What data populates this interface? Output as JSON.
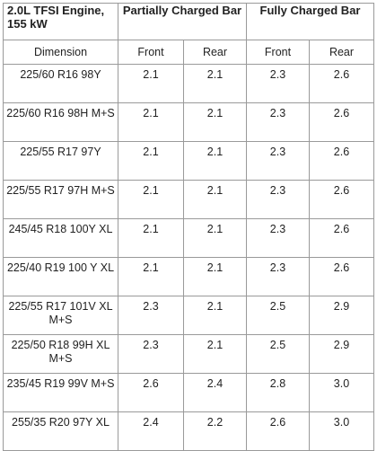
{
  "header": {
    "engine": "2.0L TFSI Engine, 155 kW",
    "partially": "Partially Charged Bar",
    "fully": "Fully Charged Bar"
  },
  "subheader": {
    "dimension": "Dimension",
    "front1": "Front",
    "rear1": "Rear",
    "front2": "Front",
    "rear2": "Rear"
  },
  "rows": [
    {
      "dimension": "225/60 R16 98Y",
      "pf": "2.1",
      "pr": "2.1",
      "ff": "2.3",
      "fr": "2.6"
    },
    {
      "dimension": "225/60 R16 98H M+S",
      "pf": "2.1",
      "pr": "2.1",
      "ff": "2.3",
      "fr": "2.6"
    },
    {
      "dimension": "225/55 R17 97Y",
      "pf": "2.1",
      "pr": "2.1",
      "ff": "2.3",
      "fr": "2.6"
    },
    {
      "dimension": "225/55 R17 97H M+S",
      "pf": "2.1",
      "pr": "2.1",
      "ff": "2.3",
      "fr": "2.6"
    },
    {
      "dimension": "245/45 R18 100Y XL",
      "pf": "2.1",
      "pr": "2.1",
      "ff": "2.3",
      "fr": "2.6"
    },
    {
      "dimension": "225/40 R19 100 Y XL",
      "pf": "2.1",
      "pr": "2.1",
      "ff": "2.3",
      "fr": "2.6"
    },
    {
      "dimension": "225/55 R17 101V XL M+S",
      "pf": "2.3",
      "pr": "2.1",
      "ff": "2.5",
      "fr": "2.9"
    },
    {
      "dimension": "225/50 R18 99H XL M+S",
      "pf": "2.3",
      "pr": "2.1",
      "ff": "2.5",
      "fr": "2.9"
    },
    {
      "dimension": "235/45 R19 99V M+S",
      "pf": "2.6",
      "pr": "2.4",
      "ff": "2.8",
      "fr": "3.0"
    },
    {
      "dimension": "255/35 R20 97Y XL",
      "pf": "2.4",
      "pr": "2.2",
      "ff": "2.6",
      "fr": "3.0"
    }
  ]
}
